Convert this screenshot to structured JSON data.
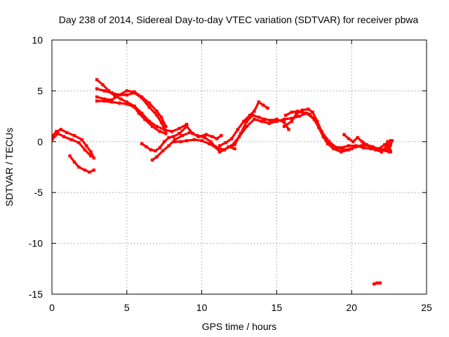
{
  "chart_data": {
    "type": "scatter",
    "title": "Day 238 of 2014, Sidereal Day-to-day VTEC variation (SDTVAR) for receiver pbwa",
    "xlabel": "GPS time / hours",
    "ylabel": "SDTVAR / TECUs",
    "xlim": [
      0,
      25
    ],
    "ylim": [
      -15,
      10
    ],
    "xticks": [
      0,
      5,
      10,
      15,
      20,
      25
    ],
    "yticks": [
      -15,
      -10,
      -5,
      0,
      5,
      10
    ],
    "xtick_labels": [
      "0",
      "5",
      "10",
      "15",
      "20",
      "25"
    ],
    "ytick_labels": [
      "-15",
      "-10",
      "-5",
      "0",
      "5",
      "10"
    ],
    "grid": true,
    "legend": "none",
    "series_color": "#ff0000",
    "series": [
      {
        "name": "track-1",
        "points": [
          [
            0,
            0.5
          ],
          [
            0.3,
            1.0
          ],
          [
            0.6,
            1.2
          ],
          [
            1.0,
            0.9
          ],
          [
            1.5,
            0.6
          ],
          [
            2.0,
            0.2
          ],
          [
            2.3,
            -0.4
          ],
          [
            2.6,
            -1.0
          ],
          [
            2.8,
            -1.6
          ]
        ]
      },
      {
        "name": "track-2",
        "points": [
          [
            0,
            0.2
          ],
          [
            0.4,
            0.8
          ],
          [
            0.8,
            0.5
          ],
          [
            1.3,
            0.2
          ],
          [
            1.8,
            -0.1
          ],
          [
            2.2,
            -0.8
          ],
          [
            2.6,
            -1.4
          ]
        ]
      },
      {
        "name": "track-3",
        "points": [
          [
            1.2,
            -1.4
          ],
          [
            1.5,
            -2.0
          ],
          [
            1.8,
            -2.5
          ],
          [
            2.2,
            -2.8
          ],
          [
            2.5,
            -3.0
          ],
          [
            2.8,
            -2.8
          ]
        ]
      },
      {
        "name": "track-4",
        "points": [
          [
            3.0,
            6.1
          ],
          [
            3.4,
            5.6
          ],
          [
            3.8,
            5.0
          ],
          [
            4.2,
            4.5
          ],
          [
            4.6,
            4.2
          ],
          [
            5.0,
            3.9
          ],
          [
            5.5,
            3.5
          ],
          [
            6.0,
            2.8
          ],
          [
            6.5,
            2.0
          ],
          [
            7.0,
            1.5
          ],
          [
            7.5,
            1.2
          ],
          [
            8.0,
            1.0
          ],
          [
            8.5,
            1.3
          ],
          [
            9.0,
            1.7
          ]
        ]
      },
      {
        "name": "track-5",
        "points": [
          [
            3.0,
            5.2
          ],
          [
            3.5,
            5.0
          ],
          [
            4.0,
            4.8
          ],
          [
            4.5,
            4.6
          ],
          [
            5.0,
            4.6
          ],
          [
            5.5,
            4.8
          ],
          [
            6.0,
            4.3
          ],
          [
            6.5,
            3.4
          ],
          [
            7.0,
            2.6
          ],
          [
            7.3,
            1.9
          ],
          [
            7.6,
            1.0
          ]
        ]
      },
      {
        "name": "track-6",
        "points": [
          [
            3.0,
            4.4
          ],
          [
            3.5,
            4.2
          ],
          [
            4.0,
            4.1
          ],
          [
            4.5,
            4.6
          ],
          [
            5.0,
            5.0
          ],
          [
            5.5,
            4.9
          ],
          [
            6.0,
            4.4
          ],
          [
            6.5,
            3.8
          ],
          [
            7.0,
            3.0
          ],
          [
            7.3,
            2.4
          ],
          [
            7.6,
            1.5
          ]
        ]
      },
      {
        "name": "track-7",
        "points": [
          [
            3.0,
            4.0
          ],
          [
            3.5,
            4.0
          ],
          [
            4.0,
            3.9
          ],
          [
            4.5,
            3.8
          ],
          [
            5.0,
            3.7
          ],
          [
            5.5,
            3.4
          ],
          [
            5.8,
            2.8
          ],
          [
            6.2,
            2.2
          ],
          [
            6.7,
            1.5
          ],
          [
            7.2,
            1.0
          ],
          [
            7.6,
            0.8
          ]
        ]
      },
      {
        "name": "track-8",
        "points": [
          [
            6.0,
            -0.2
          ],
          [
            6.3,
            -0.5
          ],
          [
            6.6,
            -0.8
          ],
          [
            6.9,
            -0.9
          ],
          [
            7.2,
            -0.6
          ],
          [
            7.5,
            0.0
          ],
          [
            7.8,
            0.4
          ],
          [
            8.1,
            0.5
          ],
          [
            8.5,
            0.8
          ],
          [
            9.0,
            1.5
          ],
          [
            9.4,
            0.8
          ],
          [
            9.8,
            0.5
          ],
          [
            10.3,
            0.7
          ],
          [
            10.7,
            0.5
          ],
          [
            11.0,
            0.3
          ],
          [
            11.3,
            0.6
          ]
        ]
      },
      {
        "name": "track-9",
        "points": [
          [
            6.7,
            -1.8
          ],
          [
            7.0,
            -1.5
          ],
          [
            7.4,
            -0.9
          ],
          [
            7.8,
            -0.4
          ],
          [
            8.2,
            0.2
          ],
          [
            8.7,
            0.6
          ],
          [
            9.2,
            0.9
          ],
          [
            9.7,
            0.6
          ],
          [
            10.2,
            0.4
          ],
          [
            10.6,
            0.0
          ],
          [
            10.9,
            -0.5
          ],
          [
            11.2,
            -1.0
          ],
          [
            11.5,
            -0.8
          ],
          [
            11.8,
            -0.5
          ],
          [
            12.2,
            -0.7
          ]
        ]
      },
      {
        "name": "track-10",
        "points": [
          [
            8.2,
            0.0
          ],
          [
            8.6,
            0.0
          ],
          [
            9.0,
            0.1
          ],
          [
            9.5,
            0.2
          ],
          [
            10.0,
            0.1
          ],
          [
            10.5,
            -0.2
          ],
          [
            11.0,
            -0.6
          ],
          [
            11.5,
            -0.8
          ],
          [
            12.0,
            -0.4
          ],
          [
            12.5,
            0.5
          ],
          [
            13.0,
            1.5
          ],
          [
            13.5,
            2.2
          ],
          [
            14.0,
            2.0
          ],
          [
            14.5,
            1.8
          ],
          [
            15.0,
            2.0
          ],
          [
            15.5,
            2.2
          ],
          [
            16.0,
            2.3
          ],
          [
            16.5,
            2.5
          ],
          [
            17.0,
            2.8
          ],
          [
            17.5,
            2.2
          ],
          [
            18.0,
            1.0
          ],
          [
            18.5,
            0.0
          ],
          [
            19.0,
            -0.6
          ],
          [
            19.5,
            -0.8
          ],
          [
            20.0,
            -0.7
          ]
        ]
      },
      {
        "name": "track-11",
        "points": [
          [
            11.2,
            -0.4
          ],
          [
            11.6,
            -0.1
          ],
          [
            12.0,
            0.3
          ],
          [
            12.4,
            1.2
          ],
          [
            12.8,
            2.0
          ],
          [
            13.2,
            2.6
          ],
          [
            13.5,
            3.0
          ],
          [
            13.8,
            3.9
          ],
          [
            14.1,
            3.6
          ],
          [
            14.4,
            3.3
          ]
        ]
      },
      {
        "name": "track-12",
        "points": [
          [
            12.2,
            -0.3
          ],
          [
            12.6,
            0.8
          ],
          [
            13.0,
            2.0
          ],
          [
            13.4,
            2.6
          ],
          [
            13.8,
            2.4
          ],
          [
            14.2,
            2.2
          ],
          [
            14.6,
            2.1
          ],
          [
            15.0,
            2.2
          ],
          [
            15.5,
            1.9
          ],
          [
            15.8,
            1.2
          ]
        ]
      },
      {
        "name": "track-13",
        "points": [
          [
            15.5,
            1.5
          ],
          [
            16.0,
            2.0
          ],
          [
            16.3,
            2.7
          ],
          [
            16.7,
            3.1
          ],
          [
            17.1,
            3.2
          ],
          [
            17.4,
            2.9
          ],
          [
            17.7,
            2.0
          ],
          [
            18.0,
            1.0
          ],
          [
            18.4,
            0.0
          ],
          [
            18.8,
            -0.5
          ],
          [
            19.3,
            -0.6
          ],
          [
            19.8,
            -0.4
          ],
          [
            20.3,
            -0.4
          ],
          [
            20.8,
            -0.6
          ],
          [
            21.3,
            -0.7
          ],
          [
            21.8,
            -0.7
          ],
          [
            22.3,
            -0.8
          ],
          [
            22.6,
            -0.9
          ]
        ]
      },
      {
        "name": "track-14",
        "points": [
          [
            15.6,
            2.6
          ],
          [
            16.0,
            2.9
          ],
          [
            16.4,
            3.0
          ],
          [
            16.8,
            2.8
          ],
          [
            17.2,
            2.7
          ],
          [
            17.5,
            2.2
          ],
          [
            17.8,
            1.4
          ],
          [
            18.1,
            0.5
          ],
          [
            18.4,
            -0.2
          ],
          [
            18.8,
            -0.7
          ],
          [
            19.3,
            -1.0
          ],
          [
            19.8,
            -0.8
          ],
          [
            20.3,
            -0.5
          ],
          [
            20.8,
            -0.3
          ],
          [
            21.3,
            -0.5
          ],
          [
            21.8,
            -0.8
          ],
          [
            22.3,
            -0.9
          ],
          [
            22.6,
            -1.0
          ]
        ]
      },
      {
        "name": "track-15",
        "points": [
          [
            19.5,
            0.7
          ],
          [
            19.8,
            0.3
          ],
          [
            20.1,
            0.0
          ],
          [
            20.4,
            0.4
          ],
          [
            20.7,
            0.0
          ],
          [
            21.0,
            -0.3
          ],
          [
            21.4,
            -0.5
          ],
          [
            21.8,
            -0.7
          ],
          [
            22.2,
            -0.3
          ],
          [
            22.6,
            0.1
          ]
        ]
      },
      {
        "name": "track-16",
        "points": [
          [
            21.2,
            -0.6
          ],
          [
            21.6,
            -0.8
          ],
          [
            22.0,
            -1.0
          ],
          [
            22.3,
            -0.5
          ],
          [
            22.4,
            0.0
          ],
          [
            22.5,
            -1.0
          ],
          [
            22.6,
            -0.3
          ],
          [
            22.7,
            0.1
          ]
        ]
      },
      {
        "name": "track-17",
        "points": [
          [
            21.5,
            -14.0
          ],
          [
            21.7,
            -13.9
          ],
          [
            21.9,
            -13.9
          ]
        ]
      }
    ]
  }
}
